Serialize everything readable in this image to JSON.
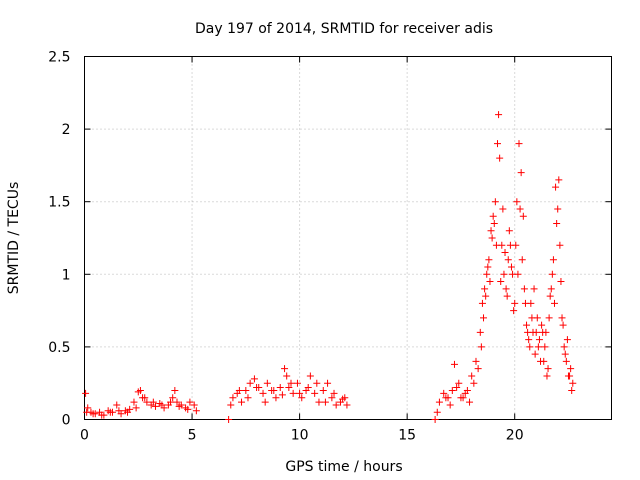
{
  "colors": {
    "series": "#ff0000",
    "grid": "#b4b4b4",
    "axis": "#000000"
  },
  "chart_data": {
    "type": "scatter",
    "title": "Day 197 of 2014, SRMTID for receiver adis",
    "xlabel": "GPS time / hours",
    "ylabel": "SRMTID / TECUs",
    "xlim": [
      0,
      24.5
    ],
    "ylim": [
      0,
      2.5
    ],
    "xticks": [
      0,
      5,
      10,
      15,
      20
    ],
    "yticks": [
      0,
      0.5,
      1,
      1.5,
      2,
      2.5
    ],
    "xtick_labels": [
      "0",
      "5",
      "10",
      "15",
      "20"
    ],
    "ytick_labels": [
      "0",
      "0.5",
      "1",
      "1.5",
      "2",
      "2.5"
    ],
    "grid": true,
    "marker": "+",
    "series": [
      {
        "name": "SRMTID",
        "x": [
          0.05,
          0.15,
          0.3,
          0.5,
          0.7,
          0.9,
          1.1,
          1.3,
          1.5,
          1.7,
          1.9,
          2.1,
          2.3,
          2.5,
          2.6,
          2.7,
          2.9,
          3.1,
          3.3,
          3.5,
          3.7,
          3.9,
          4.1,
          4.2,
          4.3,
          4.5,
          4.7,
          4.9,
          5.1,
          5.2,
          6.7,
          6.9,
          7.1,
          7.3,
          7.5,
          7.7,
          7.9,
          8.1,
          8.3,
          8.5,
          8.7,
          8.9,
          9.1,
          9.3,
          9.4,
          9.5,
          9.7,
          9.9,
          10.1,
          10.3,
          10.5,
          10.7,
          10.9,
          11.1,
          11.3,
          11.5,
          11.7,
          11.9,
          12.1,
          12.2,
          16.3,
          16.5,
          16.7,
          16.9,
          17.1,
          17.2,
          17.4,
          17.6,
          17.8,
          18.0,
          18.2,
          18.4,
          18.5,
          18.6,
          18.7,
          18.8,
          18.9,
          19.0,
          19.1,
          19.2,
          19.25,
          19.3,
          19.4,
          19.5,
          19.6,
          19.7,
          19.8,
          19.9,
          20.0,
          20.1,
          20.2,
          20.3,
          20.4,
          20.5,
          20.6,
          20.7,
          20.8,
          20.9,
          21.0,
          21.1,
          21.2,
          21.3,
          21.4,
          21.5,
          21.6,
          21.7,
          21.8,
          21.9,
          22.0,
          22.05,
          22.1,
          22.2,
          22.3,
          22.4,
          22.5,
          22.6,
          22.7,
          0.1,
          0.4,
          0.8,
          1.2,
          1.6,
          2.0,
          2.4,
          2.8,
          3.2,
          3.6,
          4.0,
          4.4,
          4.8,
          6.8,
          7.2,
          7.6,
          8.0,
          8.4,
          8.8,
          9.2,
          9.6,
          10.0,
          10.4,
          10.8,
          11.2,
          11.6,
          12.0,
          16.4,
          16.8,
          17.0,
          17.3,
          17.5,
          17.7,
          17.9,
          18.1,
          18.3,
          18.45,
          18.55,
          18.65,
          18.75,
          18.85,
          18.95,
          19.05,
          19.15,
          19.35,
          19.45,
          19.55,
          19.65,
          19.75,
          19.85,
          19.95,
          20.05,
          20.15,
          20.25,
          20.35,
          20.45,
          20.55,
          20.65,
          20.75,
          20.85,
          20.95,
          21.05,
          21.15,
          21.25,
          21.35,
          21.45,
          21.55,
          21.65,
          21.75,
          21.85,
          21.95,
          22.15,
          22.25,
          22.35,
          22.45,
          22.55,
          22.65
        ],
        "y": [
          0.18,
          0.08,
          0.05,
          0.04,
          0.05,
          0.03,
          0.06,
          0.05,
          0.1,
          0.04,
          0.06,
          0.07,
          0.12,
          0.19,
          0.2,
          0.15,
          0.12,
          0.1,
          0.09,
          0.11,
          0.08,
          0.1,
          0.15,
          0.2,
          0.12,
          0.1,
          0.08,
          0.12,
          0.1,
          0.06,
          0.0,
          0.15,
          0.18,
          0.12,
          0.2,
          0.25,
          0.28,
          0.22,
          0.18,
          0.25,
          0.2,
          0.15,
          0.22,
          0.35,
          0.3,
          0.22,
          0.18,
          0.25,
          0.15,
          0.2,
          0.3,
          0.18,
          0.12,
          0.2,
          0.25,
          0.15,
          0.1,
          0.12,
          0.15,
          0.1,
          0.0,
          0.12,
          0.18,
          0.15,
          0.2,
          0.38,
          0.25,
          0.15,
          0.2,
          0.3,
          0.4,
          0.6,
          0.8,
          0.9,
          1.0,
          1.1,
          1.3,
          1.4,
          1.5,
          1.9,
          2.1,
          1.8,
          1.2,
          1.0,
          0.9,
          1.1,
          1.2,
          1.0,
          0.8,
          1.5,
          1.9,
          1.7,
          1.4,
          0.8,
          0.6,
          0.5,
          0.7,
          0.9,
          0.6,
          0.5,
          0.4,
          0.6,
          0.5,
          0.3,
          0.7,
          0.9,
          1.1,
          1.6,
          1.45,
          1.65,
          1.2,
          0.7,
          0.5,
          0.4,
          0.3,
          0.35,
          0.25,
          0.05,
          0.04,
          0.03,
          0.05,
          0.06,
          0.05,
          0.08,
          0.15,
          0.12,
          0.1,
          0.12,
          0.09,
          0.07,
          0.1,
          0.2,
          0.15,
          0.22,
          0.12,
          0.2,
          0.17,
          0.25,
          0.18,
          0.22,
          0.25,
          0.12,
          0.18,
          0.14,
          0.05,
          0.15,
          0.1,
          0.22,
          0.15,
          0.18,
          0.12,
          0.25,
          0.35,
          0.5,
          0.7,
          0.85,
          1.05,
          0.95,
          1.25,
          1.35,
          1.2,
          0.95,
          1.45,
          1.15,
          0.85,
          1.3,
          1.05,
          0.75,
          1.2,
          1.0,
          1.45,
          1.1,
          0.9,
          0.65,
          0.55,
          0.8,
          0.6,
          0.45,
          0.7,
          0.55,
          0.65,
          0.4,
          0.6,
          0.35,
          0.85,
          1.0,
          0.8,
          1.35,
          0.95,
          0.65,
          0.45,
          0.55,
          0.3,
          0.2
        ]
      }
    ]
  }
}
